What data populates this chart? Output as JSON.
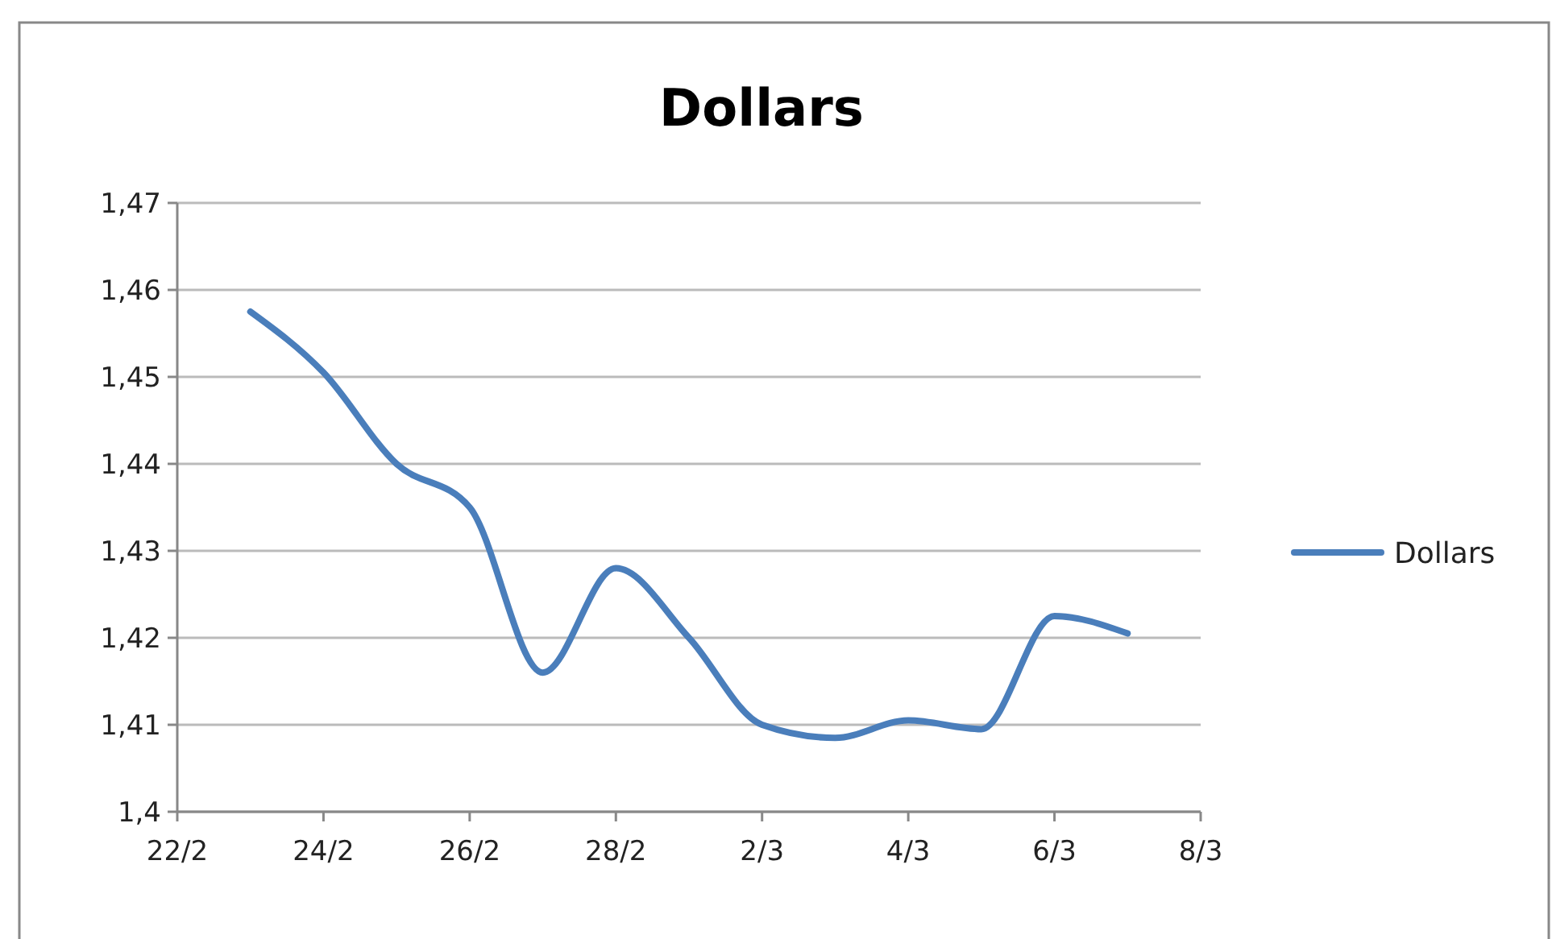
{
  "chart_data": {
    "type": "line",
    "title": "Dollars",
    "x": [
      "--02-23",
      "--02-24",
      "--02-25",
      "--02-26",
      "--02-27",
      "--02-28",
      "--03-01",
      "--03-02",
      "--03-03",
      "--03-04",
      "--03-05",
      "--03-06",
      "--03-07"
    ],
    "series": [
      {
        "name": "Dollars",
        "color": "#4a7ebb",
        "values": [
          1.4575,
          1.4505,
          1.44,
          1.435,
          1.416,
          1.428,
          1.42,
          1.41,
          1.4085,
          1.4105,
          1.4095,
          1.4225,
          1.4205
        ]
      }
    ],
    "xlim": [
      "--02-22",
      "--03-08"
    ],
    "xticks": [
      {
        "value": "--02-22",
        "label": "22/2"
      },
      {
        "value": "--02-24",
        "label": "24/2"
      },
      {
        "value": "--02-26",
        "label": "26/2"
      },
      {
        "value": "--02-28",
        "label": "28/2"
      },
      {
        "value": "--03-02",
        "label": "2/3"
      },
      {
        "value": "--03-04",
        "label": "4/3"
      },
      {
        "value": "--03-06",
        "label": "6/3"
      },
      {
        "value": "--03-08",
        "label": "8/3"
      }
    ],
    "ylim": [
      1.4,
      1.47
    ],
    "yticks": [
      {
        "value": 1.4,
        "label": "1,4"
      },
      {
        "value": 1.41,
        "label": "1,41"
      },
      {
        "value": 1.42,
        "label": "1,42"
      },
      {
        "value": 1.43,
        "label": "1,43"
      },
      {
        "value": 1.44,
        "label": "1,44"
      },
      {
        "value": 1.45,
        "label": "1,45"
      },
      {
        "value": 1.46,
        "label": "1,46"
      },
      {
        "value": 1.47,
        "label": "1,47"
      }
    ],
    "grid": "y",
    "legend": "right",
    "marker": "none",
    "line_style": "solid"
  }
}
